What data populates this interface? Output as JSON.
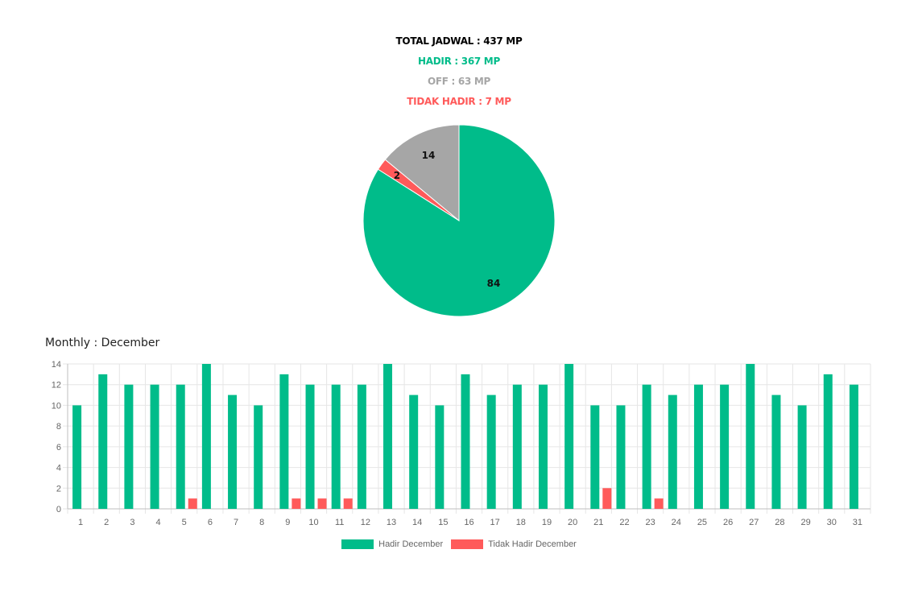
{
  "summary": {
    "total": "TOTAL JADWAL : 437 MP",
    "hadir": "HADIR : 367 MP",
    "off": "OFF : 63 MP",
    "tidak_hadir": "TIDAK HADIR : 7 MP"
  },
  "colors": {
    "hadir": "#00BC8A",
    "off": "#A6A6A6",
    "tidak_hadir": "#FF5A5A",
    "total": "#000000",
    "grid": "#E6E6E6",
    "axis": "#BFBFBF"
  },
  "monthly_title": "Monthly : December",
  "chart_data": [
    {
      "type": "pie",
      "slices": [
        {
          "label": "Hadir",
          "value": 84,
          "color": "#00BC8A"
        },
        {
          "label": "Tidak Hadir",
          "value": 2,
          "color": "#FF5A5A"
        },
        {
          "label": "Off",
          "value": 14,
          "color": "#A6A6A6"
        }
      ],
      "data_labels": [
        "84",
        "2",
        "14"
      ]
    },
    {
      "type": "bar",
      "categories": [
        "1",
        "2",
        "3",
        "4",
        "5",
        "6",
        "7",
        "8",
        "9",
        "10",
        "11",
        "12",
        "13",
        "14",
        "15",
        "16",
        "17",
        "18",
        "19",
        "20",
        "21",
        "22",
        "23",
        "24",
        "25",
        "26",
        "27",
        "28",
        "29",
        "30",
        "31"
      ],
      "series": [
        {
          "name": "Hadir December",
          "color": "#00BC8A",
          "values": [
            10,
            13,
            12,
            12,
            12,
            14,
            11,
            10,
            13,
            12,
            12,
            12,
            14,
            11,
            10,
            13,
            11,
            12,
            12,
            14,
            10,
            10,
            12,
            11,
            12,
            12,
            14,
            11,
            10,
            13,
            12
          ]
        },
        {
          "name": "Tidak Hadir December",
          "color": "#FF5A5A",
          "values": [
            0,
            0,
            0,
            0,
            1,
            0,
            0,
            0,
            1,
            1,
            1,
            0,
            0,
            0,
            0,
            0,
            0,
            0,
            0,
            0,
            2,
            0,
            1,
            0,
            0,
            0,
            0,
            0,
            0,
            0,
            0
          ]
        }
      ],
      "ylim": [
        0,
        14
      ],
      "yticks": [
        0,
        2,
        4,
        6,
        8,
        10,
        12,
        14
      ],
      "grid": true,
      "legend": "bottom"
    }
  ]
}
